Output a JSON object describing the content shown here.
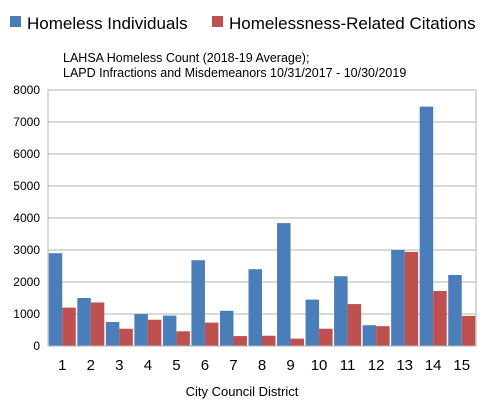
{
  "chart_data": {
    "type": "bar",
    "title_lines": [
      "LAHSA Homeless Count (2018-19 Average);",
      "LAPD Infractions and Misdemeanors 10/31/2017 - 10/30/2019"
    ],
    "xlabel": "City Council District",
    "ylabel": "",
    "ylim": [
      0,
      8000
    ],
    "yticks": [
      "0",
      "1000",
      "2000",
      "3000",
      "4000",
      "5000",
      "6000",
      "7000",
      "8000"
    ],
    "grid": true,
    "legend_position": "top",
    "categories": [
      "1",
      "2",
      "3",
      "4",
      "5",
      "6",
      "7",
      "8",
      "9",
      "10",
      "11",
      "12",
      "13",
      "14",
      "15"
    ],
    "series": [
      {
        "name": "Homeless Individuals",
        "color": "#4a7ebb",
        "values": [
          2900,
          1500,
          750,
          1000,
          950,
          2680,
          1100,
          2400,
          3840,
          1450,
          2180,
          650,
          3000,
          7480,
          2220
        ]
      },
      {
        "name": "Homelessness-Related Citations",
        "color": "#c0504d",
        "values": [
          1200,
          1360,
          540,
          820,
          460,
          730,
          310,
          320,
          230,
          540,
          1310,
          620,
          2940,
          1720,
          940
        ]
      }
    ]
  }
}
